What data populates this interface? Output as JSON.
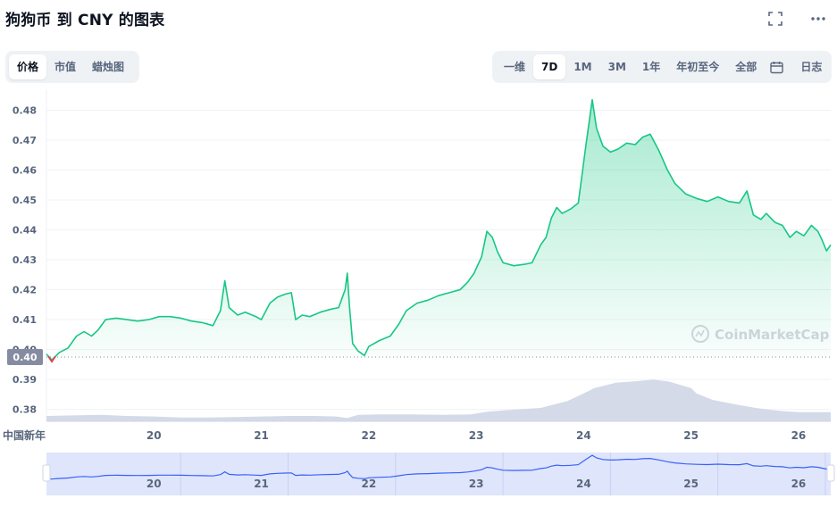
{
  "header": {
    "title": "狗狗币 到 CNY 的图表"
  },
  "left_tabs": [
    {
      "label": "价格",
      "active": true
    },
    {
      "label": "市值",
      "active": false
    },
    {
      "label": "蜡烛图",
      "active": false
    }
  ],
  "range_tabs": [
    {
      "label": "一维",
      "active": false
    },
    {
      "label": "7D",
      "active": true
    },
    {
      "label": "1M",
      "active": false
    },
    {
      "label": "3M",
      "active": false
    },
    {
      "label": "1年",
      "active": false
    },
    {
      "label": "年初至今",
      "active": false
    },
    {
      "label": "全部",
      "active": false
    }
  ],
  "log_label": "日志",
  "icons": {
    "fullscreen": "fullscreen-icon",
    "more": "more-icon",
    "calendar": "calendar-icon"
  },
  "watermark": "CoinMarketCap",
  "colors": {
    "price_line": "#16c784",
    "price_fill": "#16c784",
    "volume_fill": "#cfd6e4",
    "marker": "#858ca2",
    "down": "#ea3943",
    "navigator_line": "#3861fb",
    "navigator_fill": "#dfe5fb"
  },
  "chart_data": {
    "type": "area",
    "title": "",
    "xlabel": "",
    "ylabel": "",
    "ylim": [
      0.376,
      0.487
    ],
    "y_ticks": [
      0.38,
      0.39,
      0.4,
      0.41,
      0.42,
      0.43,
      0.44,
      0.45,
      0.46,
      0.47,
      0.48
    ],
    "y_tick_labels": [
      "0.38",
      "0.39",
      "0.40",
      "0.41",
      "0.42",
      "0.43",
      "0.44",
      "0.45",
      "0.46",
      "0.47",
      "0.48"
    ],
    "x_tick_values": [
      19.0,
      20,
      21,
      22,
      23,
      24,
      25,
      26
    ],
    "x_tick_labels": [
      "中国新年",
      "20",
      "21",
      "22",
      "23",
      "24",
      "25",
      "26"
    ],
    "xlim": [
      19.0,
      26.3
    ],
    "current_price_label": "0.40",
    "current_price_value": 0.3975,
    "grid": true,
    "legend": "none",
    "series": [
      {
        "points": [
          [
            19.0,
            0.3985
          ],
          [
            19.05,
            0.3965
          ],
          [
            19.12,
            0.399
          ],
          [
            19.2,
            0.4005
          ],
          [
            19.28,
            0.4045
          ],
          [
            19.35,
            0.406
          ],
          [
            19.42,
            0.4045
          ],
          [
            19.48,
            0.4065
          ],
          [
            19.55,
            0.41
          ],
          [
            19.65,
            0.4105
          ],
          [
            19.75,
            0.41
          ],
          [
            19.85,
            0.4095
          ],
          [
            19.95,
            0.41
          ],
          [
            20.05,
            0.411
          ],
          [
            20.15,
            0.411
          ],
          [
            20.25,
            0.4105
          ],
          [
            20.35,
            0.4095
          ],
          [
            20.45,
            0.409
          ],
          [
            20.55,
            0.408
          ],
          [
            20.62,
            0.413
          ],
          [
            20.66,
            0.423
          ],
          [
            20.7,
            0.414
          ],
          [
            20.78,
            0.4115
          ],
          [
            20.85,
            0.4125
          ],
          [
            20.95,
            0.411
          ],
          [
            21.0,
            0.41
          ],
          [
            21.08,
            0.4155
          ],
          [
            21.15,
            0.4175
          ],
          [
            21.22,
            0.4185
          ],
          [
            21.28,
            0.419
          ],
          [
            21.32,
            0.41
          ],
          [
            21.38,
            0.4115
          ],
          [
            21.45,
            0.411
          ],
          [
            21.55,
            0.4125
          ],
          [
            21.65,
            0.4135
          ],
          [
            21.72,
            0.414
          ],
          [
            21.78,
            0.42
          ],
          [
            21.8,
            0.4255
          ],
          [
            21.82,
            0.4145
          ],
          [
            21.85,
            0.402
          ],
          [
            21.9,
            0.3995
          ],
          [
            21.96,
            0.398
          ],
          [
            22.0,
            0.401
          ],
          [
            22.1,
            0.403
          ],
          [
            22.2,
            0.4045
          ],
          [
            22.28,
            0.4085
          ],
          [
            22.35,
            0.413
          ],
          [
            22.45,
            0.4155
          ],
          [
            22.55,
            0.4165
          ],
          [
            22.65,
            0.418
          ],
          [
            22.75,
            0.419
          ],
          [
            22.85,
            0.42
          ],
          [
            22.92,
            0.4225
          ],
          [
            22.98,
            0.4255
          ],
          [
            23.05,
            0.431
          ],
          [
            23.1,
            0.4395
          ],
          [
            23.15,
            0.4375
          ],
          [
            23.2,
            0.4325
          ],
          [
            23.25,
            0.429
          ],
          [
            23.35,
            0.428
          ],
          [
            23.45,
            0.4285
          ],
          [
            23.52,
            0.429
          ],
          [
            23.6,
            0.435
          ],
          [
            23.65,
            0.4375
          ],
          [
            23.7,
            0.444
          ],
          [
            23.75,
            0.4475
          ],
          [
            23.8,
            0.4455
          ],
          [
            23.88,
            0.447
          ],
          [
            23.95,
            0.449
          ],
          [
            24.02,
            0.468
          ],
          [
            24.08,
            0.4835
          ],
          [
            24.12,
            0.474
          ],
          [
            24.18,
            0.468
          ],
          [
            24.25,
            0.466
          ],
          [
            24.32,
            0.467
          ],
          [
            24.4,
            0.469
          ],
          [
            24.48,
            0.4685
          ],
          [
            24.55,
            0.471
          ],
          [
            24.62,
            0.472
          ],
          [
            24.7,
            0.4665
          ],
          [
            24.78,
            0.46
          ],
          [
            24.85,
            0.4555
          ],
          [
            24.95,
            0.452
          ],
          [
            25.05,
            0.4505
          ],
          [
            25.15,
            0.4495
          ],
          [
            25.25,
            0.451
          ],
          [
            25.35,
            0.4495
          ],
          [
            25.45,
            0.449
          ],
          [
            25.52,
            0.453
          ],
          [
            25.58,
            0.445
          ],
          [
            25.65,
            0.4435
          ],
          [
            25.7,
            0.4455
          ],
          [
            25.78,
            0.4425
          ],
          [
            25.85,
            0.4415
          ],
          [
            25.92,
            0.4375
          ],
          [
            25.98,
            0.4395
          ],
          [
            26.05,
            0.438
          ],
          [
            26.12,
            0.4415
          ],
          [
            26.18,
            0.4395
          ],
          [
            26.22,
            0.4365
          ],
          [
            26.26,
            0.433
          ],
          [
            26.3,
            0.435
          ]
        ]
      }
    ],
    "volume": [
      [
        19.0,
        0.1
      ],
      [
        19.25,
        0.11
      ],
      [
        19.5,
        0.12
      ],
      [
        19.75,
        0.1
      ],
      [
        20.0,
        0.09
      ],
      [
        20.25,
        0.07
      ],
      [
        20.5,
        0.07
      ],
      [
        20.75,
        0.08
      ],
      [
        21.0,
        0.09
      ],
      [
        21.25,
        0.1
      ],
      [
        21.5,
        0.1
      ],
      [
        21.7,
        0.09
      ],
      [
        21.8,
        0.06
      ],
      [
        21.9,
        0.12
      ],
      [
        22.1,
        0.13
      ],
      [
        22.4,
        0.13
      ],
      [
        22.7,
        0.12
      ],
      [
        22.95,
        0.13
      ],
      [
        23.1,
        0.18
      ],
      [
        23.3,
        0.21
      ],
      [
        23.6,
        0.25
      ],
      [
        23.85,
        0.38
      ],
      [
        24.0,
        0.52
      ],
      [
        24.1,
        0.62
      ],
      [
        24.3,
        0.72
      ],
      [
        24.5,
        0.75
      ],
      [
        24.65,
        0.78
      ],
      [
        24.8,
        0.74
      ],
      [
        25.0,
        0.62
      ],
      [
        25.05,
        0.52
      ],
      [
        25.2,
        0.4
      ],
      [
        25.4,
        0.32
      ],
      [
        25.6,
        0.25
      ],
      [
        25.8,
        0.2
      ],
      [
        26.0,
        0.17
      ],
      [
        26.3,
        0.17
      ]
    ]
  }
}
